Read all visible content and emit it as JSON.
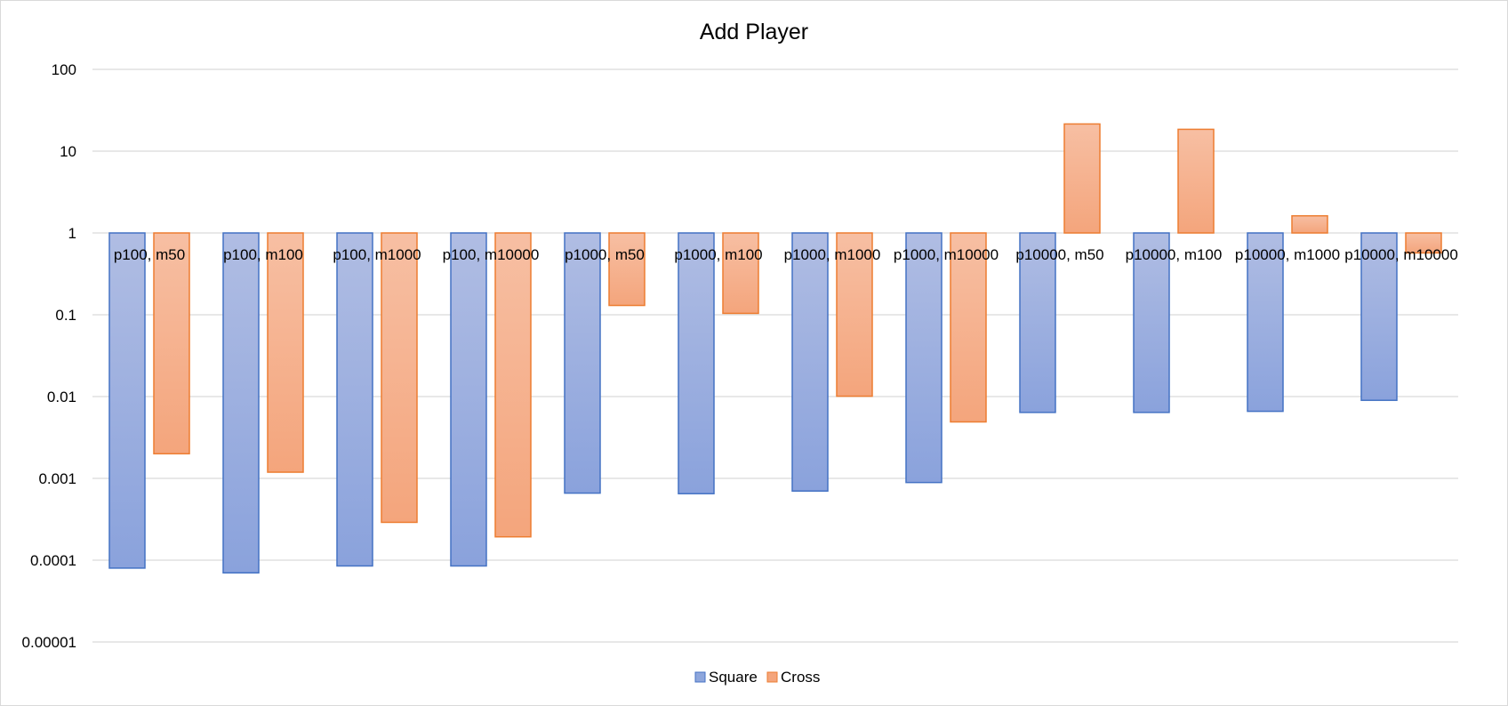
{
  "chart_data": {
    "type": "bar",
    "title": "Add Player",
    "yscale": "log",
    "ylim": [
      1e-05,
      100
    ],
    "yticks": [
      "100",
      "10",
      "1",
      "0.1",
      "0.01",
      "0.001",
      "0.0001",
      "0.00001"
    ],
    "ytick_values": [
      100,
      10,
      1,
      0.1,
      0.01,
      0.001,
      0.0001,
      1e-05
    ],
    "baseline": 1,
    "grid": true,
    "legend_position": "bottom",
    "categories": [
      "p100, m50",
      "p100, m100",
      "p100, m1000",
      "p100, m10000",
      "p1000, m50",
      "p1000, m100",
      "p1000, m1000",
      "p1000, m10000",
      "p10000, m50",
      "p10000, m100",
      "p10000, m1000",
      "p10000, m10000"
    ],
    "series": [
      {
        "name": "Square",
        "color": "#4472c4",
        "values": [
          8e-05,
          7e-05,
          8.5e-05,
          8.5e-05,
          0.00066,
          0.00065,
          0.0007,
          0.00089,
          0.0064,
          0.0064,
          0.0066,
          0.009
        ]
      },
      {
        "name": "Cross",
        "color": "#ed7d31",
        "values": [
          0.002,
          0.00119,
          0.00029,
          0.000193,
          0.13,
          0.104,
          0.0101,
          0.0049,
          21.5,
          18.5,
          1.62,
          0.57
        ]
      }
    ]
  }
}
